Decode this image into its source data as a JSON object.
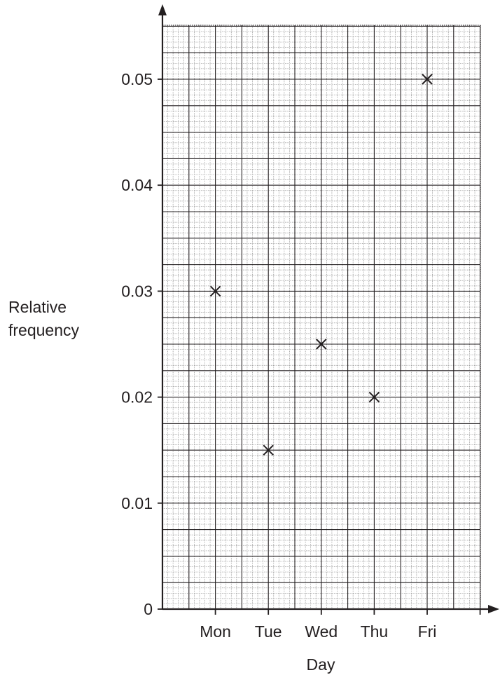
{
  "chart_data": {
    "type": "scatter",
    "categories": [
      "Mon",
      "Tue",
      "Wed",
      "Thu",
      "Fri"
    ],
    "values": [
      0.03,
      0.015,
      0.025,
      0.02,
      0.05
    ],
    "xlabel": "Day",
    "ylabel_line1": "Relative",
    "ylabel_line2": "frequency",
    "yticks": [
      "0",
      "0.01",
      "0.02",
      "0.03",
      "0.04",
      "0.05"
    ],
    "ylim": [
      0,
      0.055
    ],
    "marker": "x",
    "grid": true,
    "colors": {
      "ink": "#231f20",
      "minor_grid": "#8c8c8c"
    }
  }
}
